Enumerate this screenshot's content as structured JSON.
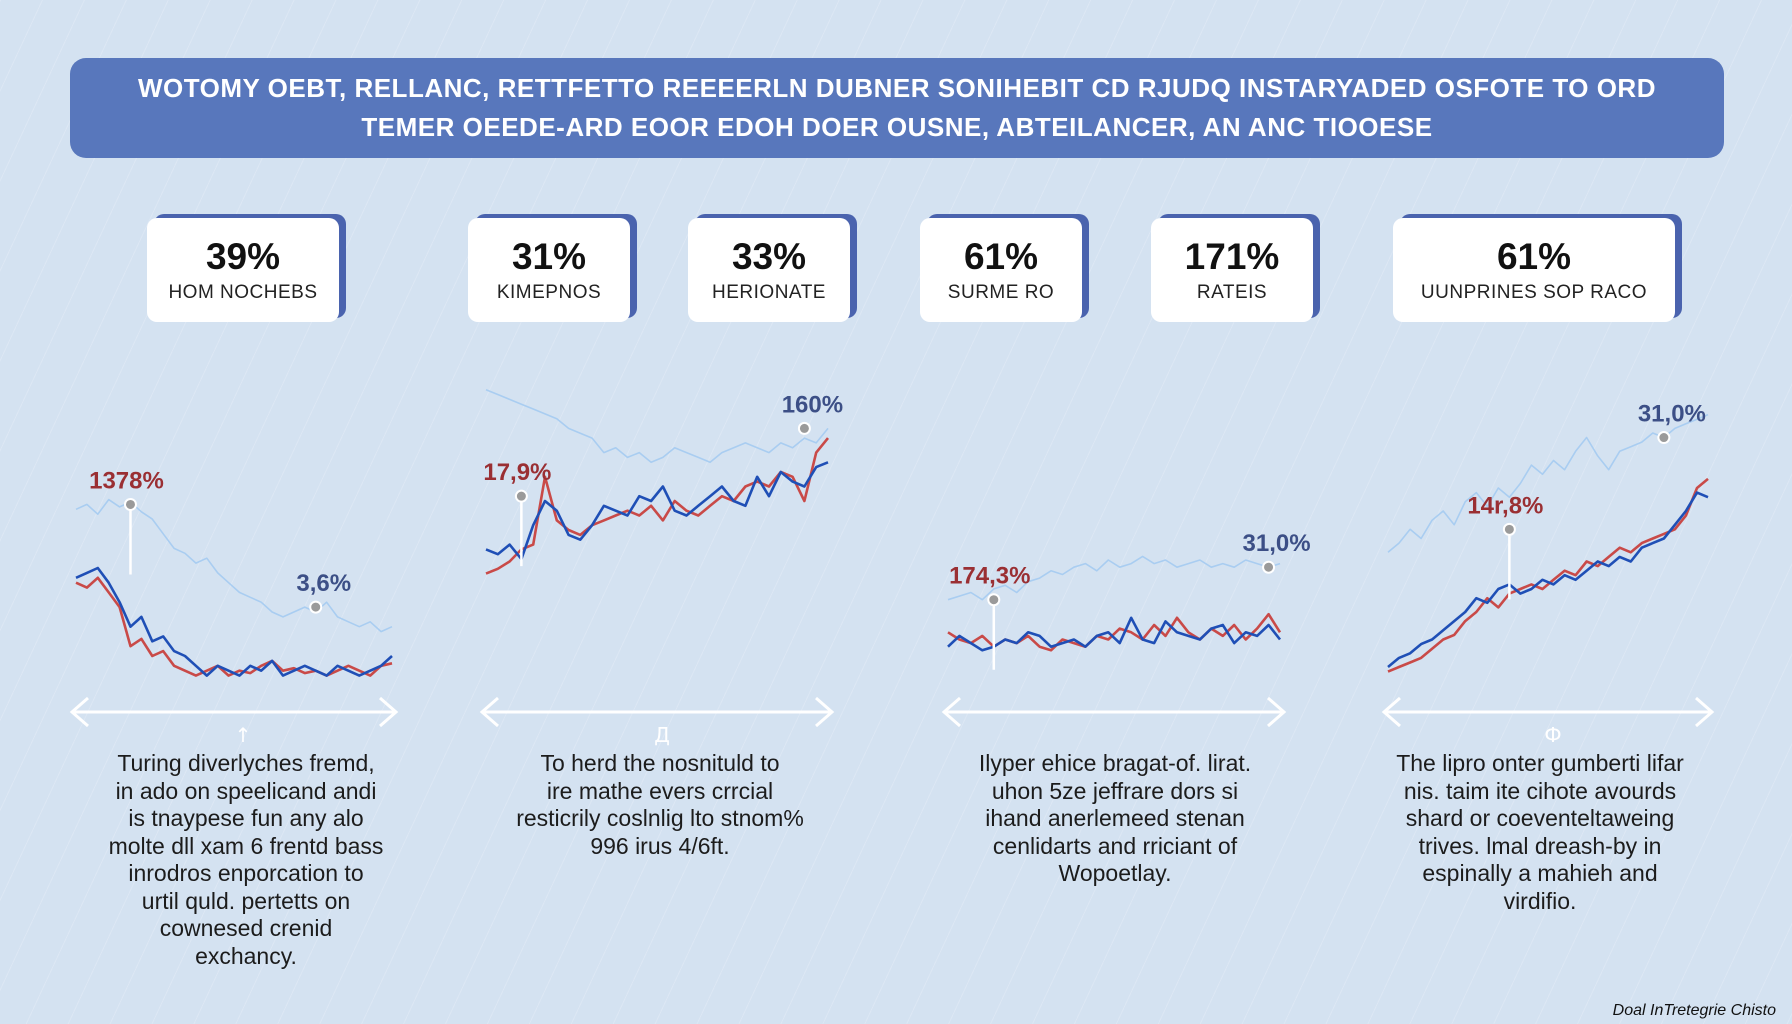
{
  "header": {
    "title": "WOTOMY OEBT, RELLANC, RETTFETTO REEEERLN DUBNER SONIHEBIT CD RJUDQ INSTARYADED OSFOTE TO ORD TEMER OEEDE-ARD EOOR EDOH DOER OUSNE, ABTEILANCER, AN ANC TIOOESE"
  },
  "stats": [
    {
      "value": "39%",
      "label": "HOM NOCHEBS"
    },
    {
      "value": "31%",
      "label": "KIMEPNOS"
    },
    {
      "value": "33%",
      "label": "HERIONATE"
    },
    {
      "value": "61%",
      "label": "SURME RO"
    },
    {
      "value": "171%",
      "label": "RATEIS"
    },
    {
      "value": "61%",
      "label": "UUNPRINES SOP RACO"
    }
  ],
  "colors": {
    "red_series": "#c94a48",
    "blue_series": "#1f4fb6",
    "light_series": "#a9cdf1",
    "banner": "#5877bc",
    "card_shadow": "#4a63ae"
  },
  "chart_data": [
    {
      "type": "line",
      "x": [
        0,
        1,
        2,
        3,
        4,
        5,
        6,
        7,
        8,
        9,
        10,
        11,
        12,
        13,
        14,
        15,
        16,
        17,
        18,
        19,
        20,
        21,
        22,
        23,
        24,
        25,
        26,
        27,
        28,
        29
      ],
      "series": [
        {
          "values": [
            48,
            46,
            50,
            44,
            38,
            22,
            25,
            18,
            20,
            14,
            12,
            10,
            12,
            14,
            10,
            12,
            11,
            14,
            16,
            12,
            13,
            11,
            12,
            10,
            12,
            14,
            12,
            10,
            14,
            15
          ]
        },
        {
          "values": [
            50,
            52,
            54,
            48,
            40,
            30,
            34,
            24,
            26,
            20,
            18,
            14,
            10,
            14,
            12,
            10,
            14,
            12,
            16,
            10,
            12,
            14,
            12,
            10,
            14,
            12,
            10,
            12,
            14,
            18
          ]
        },
        {
          "values": [
            78,
            80,
            76,
            82,
            79,
            81,
            77,
            74,
            68,
            62,
            60,
            56,
            58,
            52,
            48,
            44,
            42,
            40,
            36,
            34,
            36,
            38,
            36,
            40,
            34,
            32,
            30,
            32,
            28,
            30
          ]
        }
      ],
      "annotations": [
        {
          "text": "1378%",
          "x": 5,
          "y": 80
        },
        {
          "text": "3,6%",
          "x": 22,
          "y": 38
        }
      ]
    },
    {
      "type": "line",
      "x": [
        0,
        1,
        2,
        3,
        4,
        5,
        6,
        7,
        8,
        9,
        10,
        11,
        12,
        13,
        14,
        15,
        16,
        17,
        18,
        19,
        20,
        21,
        22,
        23,
        24,
        25,
        26,
        27,
        28,
        29
      ],
      "series": [
        {
          "values": [
            20,
            22,
            25,
            30,
            32,
            60,
            42,
            38,
            36,
            40,
            42,
            44,
            46,
            44,
            48,
            42,
            50,
            46,
            44,
            48,
            52,
            50,
            56,
            58,
            56,
            62,
            60,
            50,
            70,
            76
          ]
        },
        {
          "values": [
            30,
            28,
            32,
            26,
            40,
            50,
            46,
            36,
            34,
            40,
            48,
            46,
            44,
            52,
            50,
            56,
            46,
            44,
            48,
            52,
            56,
            50,
            48,
            60,
            52,
            62,
            58,
            56,
            64,
            66
          ]
        },
        {
          "values": [
            96,
            94,
            92,
            90,
            88,
            86,
            84,
            80,
            78,
            76,
            70,
            72,
            68,
            70,
            66,
            68,
            72,
            70,
            68,
            66,
            70,
            72,
            74,
            72,
            70,
            74,
            72,
            76,
            74,
            80
          ]
        }
      ],
      "annotations": [
        {
          "text": "17,9%",
          "x": 3,
          "y": 52
        },
        {
          "text": "160%",
          "x": 27,
          "y": 80
        }
      ]
    },
    {
      "type": "line",
      "x": [
        0,
        1,
        2,
        3,
        4,
        5,
        6,
        7,
        8,
        9,
        10,
        11,
        12,
        13,
        14,
        15,
        16,
        17,
        18,
        19,
        20,
        21,
        22,
        23,
        24,
        25,
        26,
        27,
        28,
        29
      ],
      "series": [
        {
          "values": [
            22,
            18,
            16,
            20,
            14,
            18,
            16,
            20,
            14,
            12,
            18,
            16,
            14,
            20,
            18,
            24,
            22,
            18,
            26,
            20,
            30,
            22,
            18,
            24,
            20,
            26,
            18,
            24,
            32,
            22
          ]
        },
        {
          "values": [
            14,
            20,
            16,
            12,
            14,
            18,
            16,
            22,
            20,
            14,
            16,
            18,
            14,
            20,
            22,
            16,
            30,
            18,
            16,
            28,
            22,
            20,
            18,
            24,
            26,
            16,
            22,
            20,
            26,
            18
          ]
        },
        {
          "values": [
            40,
            42,
            44,
            40,
            46,
            48,
            44,
            50,
            52,
            56,
            54,
            58,
            60,
            56,
            62,
            58,
            60,
            64,
            60,
            62,
            58,
            60,
            62,
            58,
            60,
            58,
            62,
            60,
            58,
            60
          ]
        }
      ],
      "annotations": [
        {
          "text": "174,3%",
          "x": 4,
          "y": 40
        },
        {
          "text": "31,0%",
          "x": 28,
          "y": 58
        }
      ]
    },
    {
      "type": "line",
      "x": [
        0,
        1,
        2,
        3,
        4,
        5,
        6,
        7,
        8,
        9,
        10,
        11,
        12,
        13,
        14,
        15,
        16,
        17,
        18,
        19,
        20,
        21,
        22,
        23,
        24,
        25,
        26,
        27,
        28,
        29
      ],
      "series": [
        {
          "values": [
            8,
            10,
            12,
            14,
            18,
            22,
            24,
            30,
            34,
            40,
            36,
            42,
            44,
            46,
            44,
            48,
            52,
            50,
            56,
            54,
            58,
            62,
            60,
            64,
            66,
            68,
            70,
            76,
            88,
            92
          ]
        },
        {
          "values": [
            10,
            14,
            16,
            20,
            22,
            26,
            30,
            34,
            40,
            38,
            44,
            46,
            42,
            44,
            48,
            46,
            50,
            48,
            52,
            56,
            54,
            58,
            56,
            62,
            64,
            66,
            72,
            78,
            86,
            84
          ]
        },
        {
          "values": [
            60,
            64,
            70,
            66,
            74,
            78,
            72,
            82,
            86,
            80,
            88,
            84,
            90,
            98,
            94,
            100,
            96,
            104,
            110,
            102,
            96,
            104,
            106,
            108,
            112,
            110,
            114,
            116,
            118,
            120
          ]
        }
      ],
      "annotations": [
        {
          "text": "14r,8%",
          "x": 11,
          "y": 70
        },
        {
          "text": "31,0%",
          "x": 25,
          "y": 110
        }
      ]
    }
  ],
  "descriptions": [
    [
      "Turing diverlyches fremd,",
      "in ado on speelicand andi",
      "is tnaypese fun any alo",
      "molte dll xam 6 frentd bass",
      "inrodros enporcation to",
      "urtil quld. pertetts on",
      "cownesed crenid",
      "exchancy."
    ],
    [
      "To herd the nosnituld to",
      "ire mathe evers crrcial",
      "resticrily coslnlig lto stnom%",
      "996 irus 4/6ft."
    ],
    [
      "Ilyper ehice bragat-of. lirat.",
      "uhon 5ze jeffrare dors si",
      "ihand anerlemeed stenan",
      "cenlidarts and rriciant of",
      "Wopoetlay."
    ],
    [
      "The lipro onter gumberti lifar",
      "nis. taim ite cihote avourds",
      "shard or coeventeltaweing",
      "trives. lmal dreash-by in",
      "espinally a mahieh and",
      "virdifio."
    ]
  ],
  "axis_glyphs": [
    "↑",
    "Д",
    "",
    "Ф"
  ],
  "footer": {
    "credit": "Doal InTretegrie Chisto"
  }
}
